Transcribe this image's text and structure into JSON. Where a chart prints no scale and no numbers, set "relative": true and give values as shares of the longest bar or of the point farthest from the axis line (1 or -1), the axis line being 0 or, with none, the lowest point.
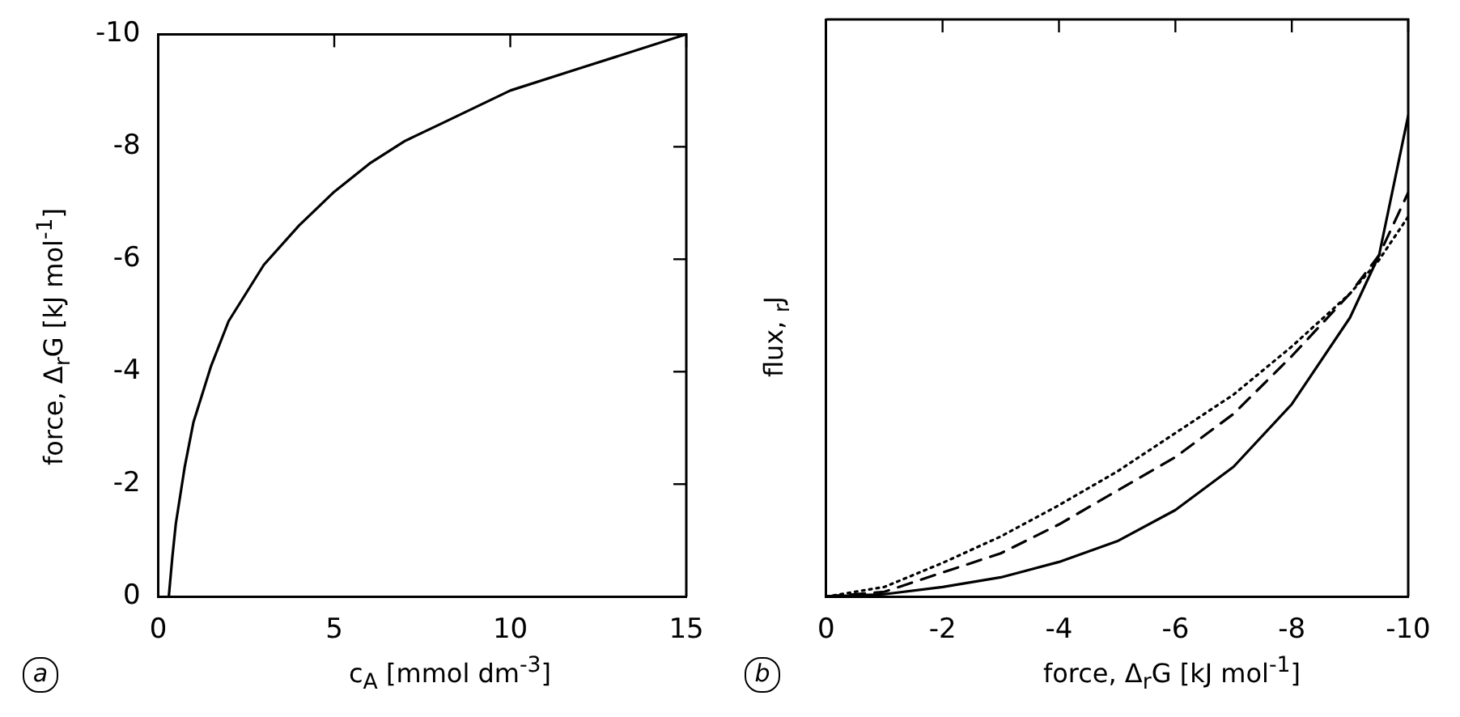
{
  "chart_data": [
    {
      "type": "line",
      "xlabel": "c$_{A}$ [mmol dm$^{-3}$]",
      "ylabel": "force, Δ$_{r}$G [kJ mol$^{-1}$]",
      "annotations": [
        "a"
      ],
      "xlim": [
        0,
        15
      ],
      "xticks": [
        0,
        5,
        10,
        15
      ],
      "ylim": [
        0,
        -10
      ],
      "yticks": [
        0,
        -2,
        -4,
        -6,
        -8,
        -10
      ],
      "grid": false,
      "legend": false,
      "marker": "none",
      "series": [
        {
          "color": "#000000",
          "line_style": "solid",
          "x": [
            0.3,
            0.4,
            0.5,
            0.75,
            1,
            1.5,
            2,
            3,
            4,
            5,
            6,
            7,
            8,
            10,
            12,
            15
          ],
          "values": [
            0,
            -0.7,
            -1.3,
            -2.3,
            -3.1,
            -4.1,
            -4.9,
            -5.9,
            -6.6,
            -7.2,
            -7.7,
            -8.1,
            -8.4,
            -9.0,
            -9.4,
            -10
          ]
        }
      ]
    },
    {
      "type": "line",
      "xlabel": "force, Δ$_{r}$G [kJ mol$^{-1}$]",
      "ylabel": "flux, $_{r}$J",
      "annotations": [
        "b"
      ],
      "relative": true,
      "xlim": [
        0,
        -10
      ],
      "xticks": [
        0,
        -2,
        -4,
        -6,
        -8,
        -10
      ],
      "grid": false,
      "legend": false,
      "marker": "none",
      "tick_labels": "x",
      "series": [
        {
          "color": "#000000",
          "line_style": "solid",
          "x": [
            0,
            -1,
            -2,
            -3,
            -4,
            -5,
            -6,
            -7,
            -8,
            -9,
            -9.5,
            -10
          ],
          "values": [
            0,
            0.005,
            0.02,
            0.04,
            0.072,
            0.115,
            0.18,
            0.27,
            0.4,
            0.58,
            0.71,
            1
          ]
        },
        {
          "color": "#000000",
          "line_style": "dashed",
          "x": [
            0,
            -1,
            -2,
            -3,
            -4,
            -5,
            -6,
            -7,
            -8,
            -9,
            -9.5,
            -10
          ],
          "values": [
            0,
            0.01,
            0.05,
            0.09,
            0.15,
            0.22,
            0.29,
            0.38,
            0.5,
            0.63,
            0.71,
            0.84
          ]
        },
        {
          "color": "#000000",
          "line_style": "dotted",
          "x": [
            0,
            -1,
            -2,
            -3,
            -4,
            -5,
            -6,
            -7,
            -8,
            -9,
            -9.5,
            -10
          ],
          "values": [
            0,
            0.02,
            0.07,
            0.125,
            0.19,
            0.26,
            0.34,
            0.42,
            0.52,
            0.63,
            0.7,
            0.79
          ]
        }
      ]
    }
  ]
}
